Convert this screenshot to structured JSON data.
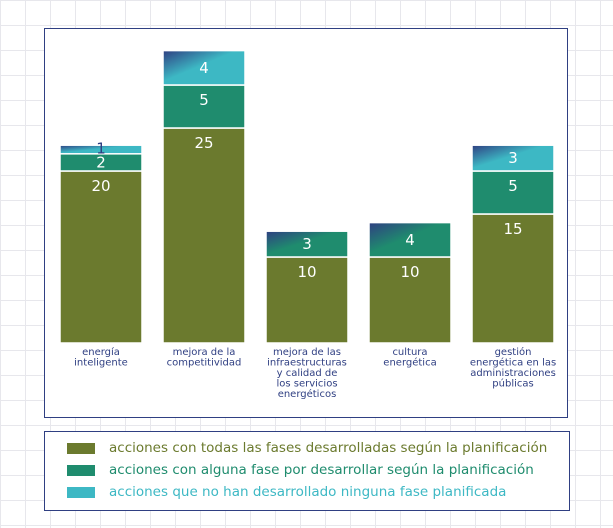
{
  "chart_data": {
    "type": "bar",
    "stacked": true,
    "categories": [
      "energía inteligente",
      "mejora de la competitividad",
      "mejora de las infraestructuras y calidad de los servicios energéticos",
      "cultura energética",
      "gestión energética en las administraciones públicas"
    ],
    "category_lines": [
      [
        "energía",
        "inteligente"
      ],
      [
        "mejora de la",
        "competitividad"
      ],
      [
        "mejora de las",
        "infraestructuras",
        "y calidad de",
        "los servicios",
        "energéticos"
      ],
      [
        "cultura",
        "energética"
      ],
      [
        "gestión",
        "energética en las",
        "administraciones",
        "públicas"
      ]
    ],
    "series": [
      {
        "name": "acciones con todas las fases desarrolladas según la planificación",
        "values": [
          20,
          25,
          10,
          10,
          15
        ],
        "color": "#6b7a2e"
      },
      {
        "name": "acciones con alguna fase por desarrollar según la planificación",
        "values": [
          2,
          5,
          3,
          4,
          5
        ],
        "color": "#1f8c6e"
      },
      {
        "name": "acciones que no han desarrollado ninguna fase planificada",
        "values": [
          1,
          4,
          null,
          null,
          3
        ],
        "color": "#3db8c4"
      }
    ],
    "ylim": [
      0,
      34
    ],
    "grid": false,
    "legend_position": "bottom",
    "title": "",
    "xlabel": "",
    "ylabel": ""
  },
  "colors": {
    "frame": "#2f3f82",
    "category_text": "#2f3f82",
    "legend_text": [
      "#6b7a2e",
      "#1f8c6e",
      "#3db8c4"
    ]
  }
}
